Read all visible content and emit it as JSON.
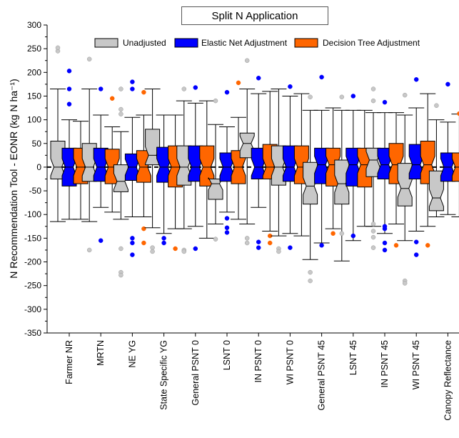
{
  "chart_data": {
    "type": "boxplot",
    "title": "Split N Application",
    "ylabel": "N Recommendation Tool - EONR (kg N ha⁻¹)",
    "ylim": [
      -350,
      300
    ],
    "yticks": [
      -350,
      -300,
      -250,
      -200,
      -150,
      -100,
      -50,
      0,
      50,
      100,
      150,
      200,
      250,
      300
    ],
    "reference_line": 0,
    "legend_position": "top",
    "categories": [
      "Farmer NR",
      "MRTN",
      "NE YG",
      "State Specific YG",
      "General PSNT 0",
      "LSNT 0",
      "IN PSNT 0",
      "WI PSNT 0",
      "General PSNT 45",
      "LSNT 45",
      "IN PSNT 45",
      "WI PSNT 45",
      "Canopy Reflectance"
    ],
    "series": [
      {
        "name": "Unadjusted",
        "color": "#c8c8c8",
        "boxes": [
          {
            "whisker_low": -115,
            "q1": -25,
            "median": 0,
            "q3": 55,
            "whisker_high": 165,
            "outliers": [
              245,
              252
            ]
          },
          {
            "whisker_low": -115,
            "q1": -30,
            "median": 0,
            "q3": 50,
            "whisker_high": 165,
            "outliers": [
              228,
              -175
            ]
          },
          {
            "whisker_low": -110,
            "q1": -52,
            "median": -30,
            "q3": 5,
            "whisker_high": 75,
            "outliers": [
              122,
              112,
              165,
              -172,
              -222,
              -228
            ]
          },
          {
            "whisker_low": -128,
            "q1": 5,
            "median": 25,
            "q3": 80,
            "whisker_high": 165,
            "outliers": [
              -170,
              -178
            ]
          },
          {
            "whisker_low": -130,
            "q1": -38,
            "median": 0,
            "q3": 45,
            "whisker_high": 140,
            "outliers": [
              165,
              -175,
              -178
            ]
          },
          {
            "whisker_low": -120,
            "q1": -68,
            "median": -35,
            "q3": -25,
            "whisker_high": 90,
            "outliers": [
              140,
              -152
            ]
          },
          {
            "whisker_low": -120,
            "q1": 20,
            "median": 50,
            "q3": 72,
            "whisker_high": 165,
            "outliers": [
              225,
              -150,
              -160
            ]
          },
          {
            "whisker_low": -145,
            "q1": -38,
            "median": 0,
            "q3": 45,
            "whisker_high": 165,
            "outliers": [
              -172,
              -178
            ]
          },
          {
            "whisker_low": -195,
            "q1": -78,
            "median": -40,
            "q3": 10,
            "whisker_high": 120,
            "outliers": [
              148,
              -222,
              -240
            ]
          },
          {
            "whisker_low": -198,
            "q1": -78,
            "median": -35,
            "q3": 15,
            "whisker_high": 120,
            "outliers": [
              148,
              -140
            ]
          },
          {
            "whisker_low": -125,
            "q1": -20,
            "median": 15,
            "q3": 40,
            "whisker_high": 115,
            "outliers": [
              165,
              140,
              -120,
              -135,
              -148,
              -170
            ]
          },
          {
            "whisker_low": -155,
            "q1": -82,
            "median": -45,
            "q3": 8,
            "whisker_high": 110,
            "outliers": [
              152,
              -240,
              -245
            ]
          },
          {
            "whisker_low": -105,
            "q1": -92,
            "median": -65,
            "q3": -8,
            "whisker_high": 100,
            "outliers": [
              130
            ]
          }
        ]
      },
      {
        "name": "Elastic Net Adjustment",
        "color": "#0000ff",
        "boxes": [
          {
            "whisker_low": -110,
            "q1": -40,
            "median": 0,
            "q3": 40,
            "whisker_high": 100,
            "outliers": [
              203,
              165,
              133
            ]
          },
          {
            "whisker_low": -85,
            "q1": -30,
            "median": 0,
            "q3": 40,
            "whisker_high": 110,
            "outliers": [
              165,
              -155
            ]
          },
          {
            "whisker_low": -105,
            "q1": -28,
            "median": 0,
            "q3": 28,
            "whisker_high": 105,
            "outliers": [
              180,
              165,
              -150,
              -160,
              -185
            ]
          },
          {
            "whisker_low": -140,
            "q1": -32,
            "median": 0,
            "q3": 42,
            "whisker_high": 110,
            "outliers": [
              -150,
              -160
            ]
          },
          {
            "whisker_low": -125,
            "q1": -30,
            "median": 0,
            "q3": 45,
            "whisker_high": 135,
            "outliers": [
              168,
              -172
            ]
          },
          {
            "whisker_low": -95,
            "q1": -30,
            "median": 0,
            "q3": 30,
            "whisker_high": 85,
            "outliers": [
              158,
              -108,
              -128,
              -138
            ]
          },
          {
            "whisker_low": -85,
            "q1": -25,
            "median": 0,
            "q3": 40,
            "whisker_high": 155,
            "outliers": [
              188,
              -158,
              -170
            ]
          },
          {
            "whisker_low": -140,
            "q1": -30,
            "median": 0,
            "q3": 45,
            "whisker_high": 150,
            "outliers": [
              170,
              -170
            ]
          },
          {
            "whisker_low": -160,
            "q1": -35,
            "median": 5,
            "q3": 40,
            "whisker_high": 120,
            "outliers": [
              190,
              -165
            ]
          },
          {
            "whisker_low": -155,
            "q1": -40,
            "median": 5,
            "q3": 40,
            "whisker_high": 120,
            "outliers": [
              150,
              -145
            ]
          },
          {
            "whisker_low": -140,
            "q1": -25,
            "median": 5,
            "q3": 40,
            "whisker_high": 115,
            "outliers": [
              137,
              -125,
              -130,
              -160,
              -175
            ]
          },
          {
            "whisker_low": -135,
            "q1": -25,
            "median": 5,
            "q3": 48,
            "whisker_high": 125,
            "outliers": [
              185,
              -158,
              -185
            ]
          },
          {
            "whisker_low": -100,
            "q1": -30,
            "median": 0,
            "q3": 30,
            "whisker_high": 95,
            "outliers": [
              175
            ]
          }
        ]
      },
      {
        "name": "Decision Tree Adjustment",
        "color": "#ff6600",
        "boxes": [
          {
            "whisker_low": -110,
            "q1": -35,
            "median": 0,
            "q3": 40,
            "whisker_high": 97,
            "outliers": []
          },
          {
            "whisker_low": -95,
            "q1": -35,
            "median": 0,
            "q3": 38,
            "whisker_high": 85,
            "outliers": [
              145
            ]
          },
          {
            "whisker_low": -105,
            "q1": -32,
            "median": 0,
            "q3": 35,
            "whisker_high": 110,
            "outliers": [
              158,
              -130,
              -160
            ]
          },
          {
            "whisker_low": -130,
            "q1": -42,
            "median": 0,
            "q3": 45,
            "whisker_high": 110,
            "outliers": [
              -172
            ]
          },
          {
            "whisker_low": -150,
            "q1": -40,
            "median": 0,
            "q3": 45,
            "whisker_high": 140,
            "outliers": []
          },
          {
            "whisker_low": -110,
            "q1": -35,
            "median": 0,
            "q3": 35,
            "whisker_high": 105,
            "outliers": [
              178
            ]
          },
          {
            "whisker_low": -135,
            "q1": -25,
            "median": 0,
            "q3": 48,
            "whisker_high": 160,
            "outliers": [
              -145,
              -160
            ]
          },
          {
            "whisker_low": -145,
            "q1": -35,
            "median": 0,
            "q3": 45,
            "whisker_high": 155,
            "outliers": []
          },
          {
            "whisker_low": -130,
            "q1": -40,
            "median": 5,
            "q3": 40,
            "whisker_high": 125,
            "outliers": [
              -140
            ]
          },
          {
            "whisker_low": -125,
            "q1": -42,
            "median": 5,
            "q3": 40,
            "whisker_high": 120,
            "outliers": []
          },
          {
            "whisker_low": -120,
            "q1": -35,
            "median": 5,
            "q3": 50,
            "whisker_high": 115,
            "outliers": [
              -165
            ]
          },
          {
            "whisker_low": -125,
            "q1": -35,
            "median": 5,
            "q3": 55,
            "whisker_high": 155,
            "outliers": [
              -165
            ]
          },
          {
            "whisker_low": -105,
            "q1": -30,
            "median": 0,
            "q3": 30,
            "whisker_high": 112,
            "outliers": [
              113
            ]
          }
        ]
      }
    ]
  }
}
